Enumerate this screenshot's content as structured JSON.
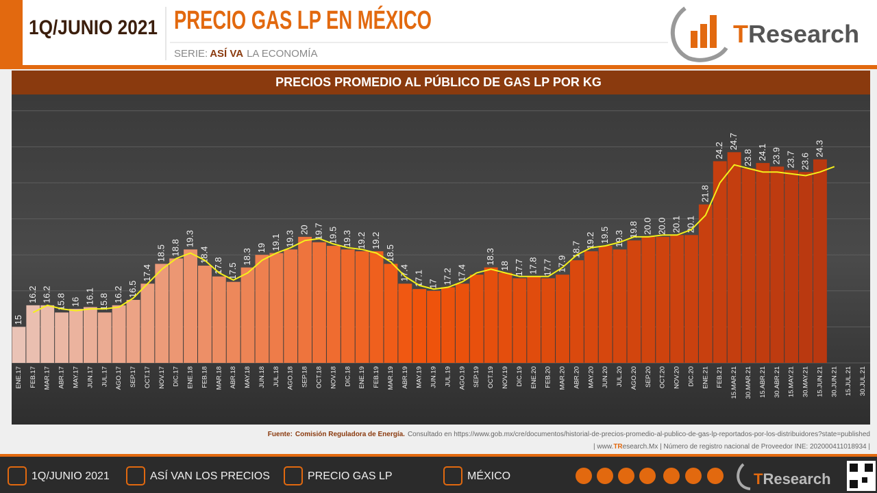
{
  "header": {
    "date": "1Q/JUNIO 2021",
    "title": "PRECIO GAS LP EN MÉXICO",
    "series_label": "SERIE:",
    "series_name": "ASÍ VA",
    "series_rest": "LA ECONOMÍA",
    "logo_t": "T",
    "logo_rest": "Research"
  },
  "chart_data": {
    "type": "bar",
    "title": "PRECIOS PROMEDIO AL PÚBLICO DE GAS LP POR KG",
    "categories": [
      "ENE.17",
      "FEB.17",
      "MAR.17",
      "ABR.17",
      "MAY.17",
      "JUN.17",
      "JUL.17",
      "AGO.17",
      "SEP.17",
      "OCT.17",
      "NOV.17",
      "DIC.17",
      "ENE.18",
      "FEB.18",
      "MAR.18",
      "ABR.18",
      "MAY.18",
      "JUN.18",
      "JUL.18",
      "AGO.18",
      "SEP.18",
      "OCT.18",
      "NOV.18",
      "DIC.18",
      "ENE.19",
      "FEB.19",
      "MAR.19",
      "ABR.19",
      "MAY.19",
      "JUN.19",
      "JUL.19",
      "AGO.19",
      "SEP.19",
      "OCT.19",
      "NOV.19",
      "DIC.19",
      "ENE.20",
      "FEB.20",
      "MAR.20",
      "ABR.20",
      "MAY.20",
      "JUN.20",
      "JUL.20",
      "AGO.20",
      "SEP.20",
      "OCT.20",
      "NOV.20",
      "DIC.20",
      "ENE.21",
      "FEB.21",
      "15.MAR.21",
      "30.MAR.21",
      "15.ABR.21",
      "30.ABR.21",
      "15.MAY.21",
      "30.MAY.21",
      "15.JUN.21",
      "30.JUN.21",
      "15.JUL.21",
      "30.JUL.21"
    ],
    "series": [
      {
        "type": "bar",
        "color_stops": [
          "#eac3b6",
          "#f0540c",
          "#b83810"
        ],
        "values": [
          15,
          16.2,
          16.2,
          15.8,
          16,
          16.1,
          15.8,
          16.2,
          16.5,
          17.4,
          18.5,
          18.8,
          19.3,
          18.4,
          17.8,
          17.5,
          18.3,
          19,
          19.1,
          19.3,
          20,
          19.7,
          19.5,
          19.3,
          19.2,
          19.2,
          18.5,
          17.4,
          17.1,
          17,
          17.2,
          17.4,
          17.9,
          18.3,
          18,
          17.7,
          17.8,
          17.7,
          17.9,
          18.7,
          19.2,
          19.5,
          19.3,
          19.8,
          20,
          20,
          20.1,
          20.1,
          21.8,
          24.2,
          24.7,
          23.8,
          24.1,
          23.9,
          23.7,
          23.6,
          24.3,
          null,
          null,
          null
        ],
        "value_labels": [
          "15",
          "16.2",
          "16.2",
          "15.8",
          "16",
          "16.1",
          "15.8",
          "16.2",
          "16.5",
          "17.4",
          "18.5",
          "18.8",
          "19.3",
          "18.4",
          "17.8",
          "17.5",
          "18.3",
          "19",
          "19.1",
          "19.3",
          "20",
          "19.7",
          "19.5",
          "19.3",
          "19.2",
          "19.2",
          "18.5",
          "17.4",
          "17.1",
          "17",
          "17.2",
          "17.4",
          null,
          "18.3",
          "18",
          "17.7",
          "17.8",
          "17.7",
          "17.9",
          "18.7",
          "19.2",
          "19.5",
          "19.3",
          "19.8",
          "20.0",
          "20.0",
          "20.1",
          "20.1",
          "21.8",
          "24.2",
          "24.7",
          "23.8",
          "24.1",
          "23.9",
          "23.7",
          "23.6",
          "24.3",
          null,
          null,
          null
        ]
      },
      {
        "type": "line",
        "color": "#f5f01a",
        "values": [
          null,
          15.8,
          16.2,
          16.0,
          15.9,
          16.0,
          16.0,
          16.1,
          16.6,
          17.4,
          18.2,
          18.8,
          19.1,
          18.7,
          18.0,
          17.6,
          18.0,
          18.7,
          19.1,
          19.4,
          19.8,
          19.9,
          19.6,
          19.4,
          19.3,
          19.1,
          18.6,
          17.8,
          17.3,
          17.1,
          17.2,
          17.5,
          18.0,
          18.2,
          18.0,
          17.8,
          17.8,
          17.8,
          18.3,
          19.0,
          19.4,
          19.5,
          19.7,
          20.0,
          20.0,
          20.1,
          20.1,
          20.4,
          21.2,
          23.0,
          24.0,
          23.8,
          23.6,
          23.6,
          23.5,
          23.4,
          23.6,
          23.9,
          null,
          null
        ]
      }
    ],
    "ylim": [
      13,
      28
    ],
    "yticks": [
      13,
      15,
      17,
      19,
      21,
      23,
      25,
      27
    ],
    "grid": true
  },
  "source": {
    "label": "Fuente:",
    "name": "Comisión Reguladora de Energía.",
    "consulted": "Consultado en https://www.gob.mx/cre/documentos/historial-de-precios-promedio-al-publico-de-gas-lp-reportados-por-los-distribuidores?state=published",
    "reg_a": "| www.",
    "reg_b": "TR",
    "reg_c": "esearch.Mx | Número de registro nacional de Proveedor INE: 202000411018934 |"
  },
  "footer": {
    "items": [
      "1Q/JUNIO 2021",
      "ASÍ VAN LOS PRECIOS",
      "PRECIO GAS LP",
      "MÉXICO"
    ],
    "logo_t": "T",
    "logo_rest": "Research"
  }
}
